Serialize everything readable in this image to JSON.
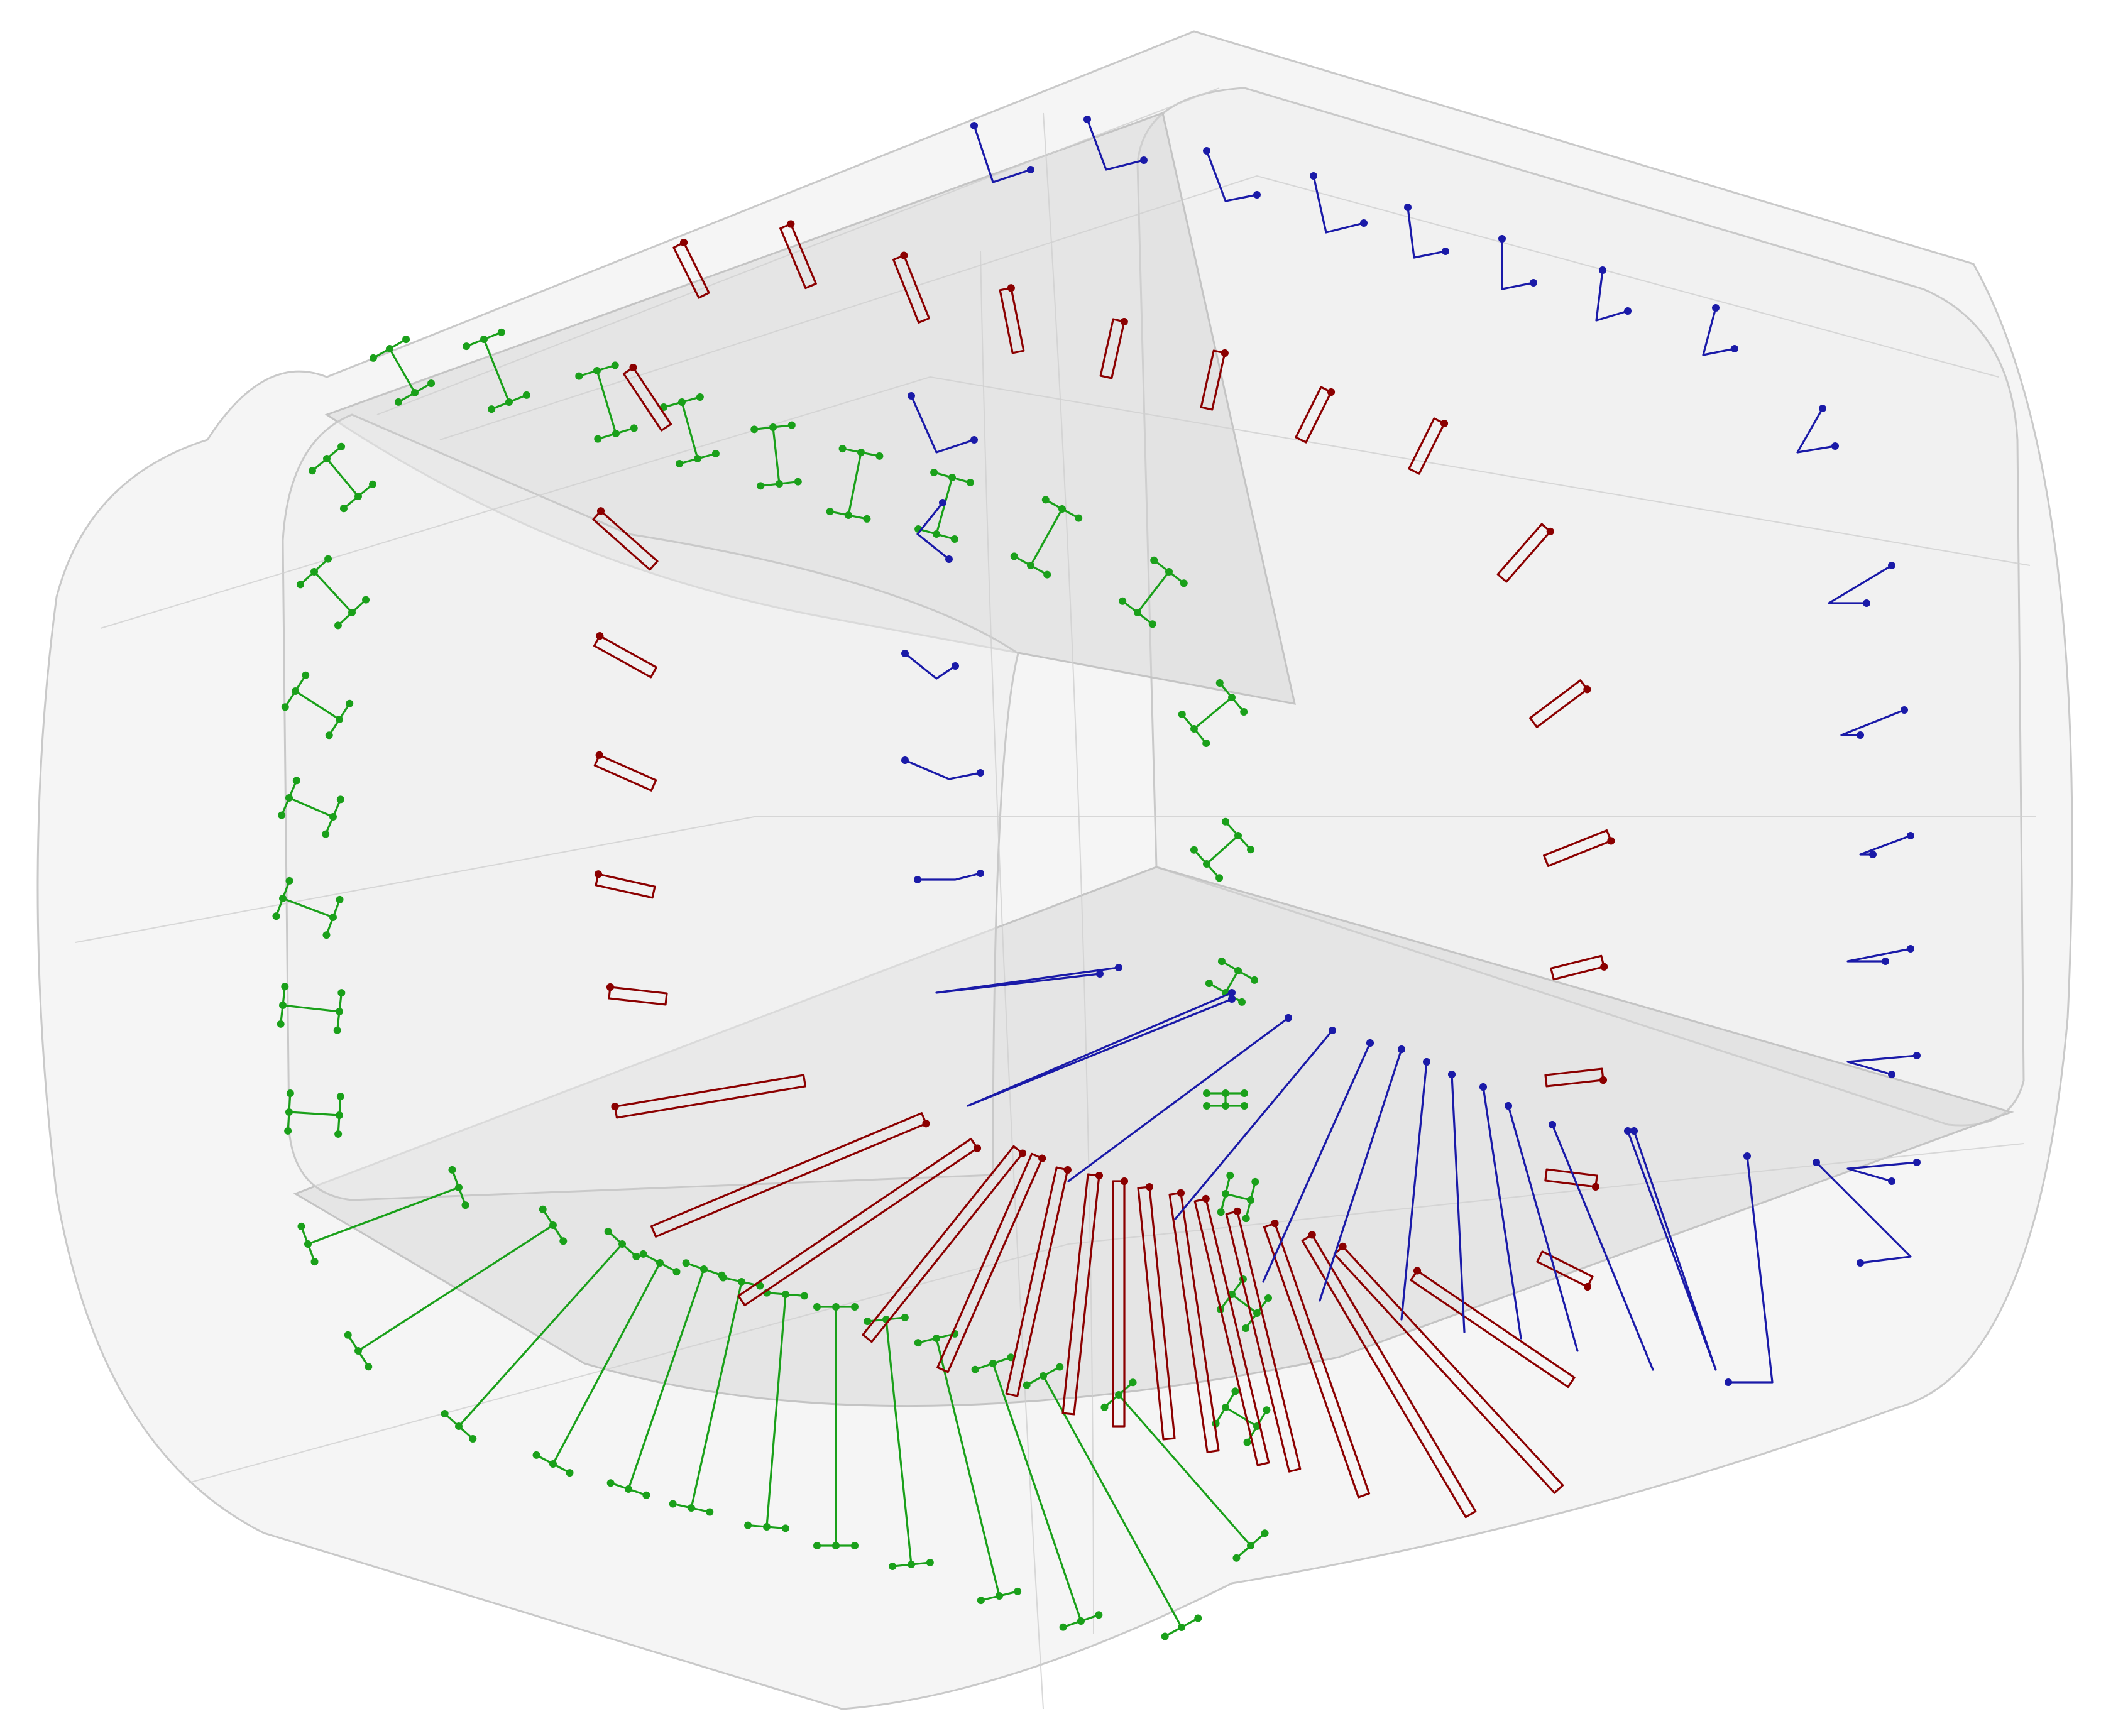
{
  "scene": {
    "background": "#ffffff",
    "shell_color": "#e6e6e6"
  },
  "series": [
    {
      "key": "green",
      "color": "#1aa01a"
    },
    {
      "key": "red",
      "color": "#8b0000"
    },
    {
      "key": "blue",
      "color": "#1a1aa8"
    }
  ]
}
